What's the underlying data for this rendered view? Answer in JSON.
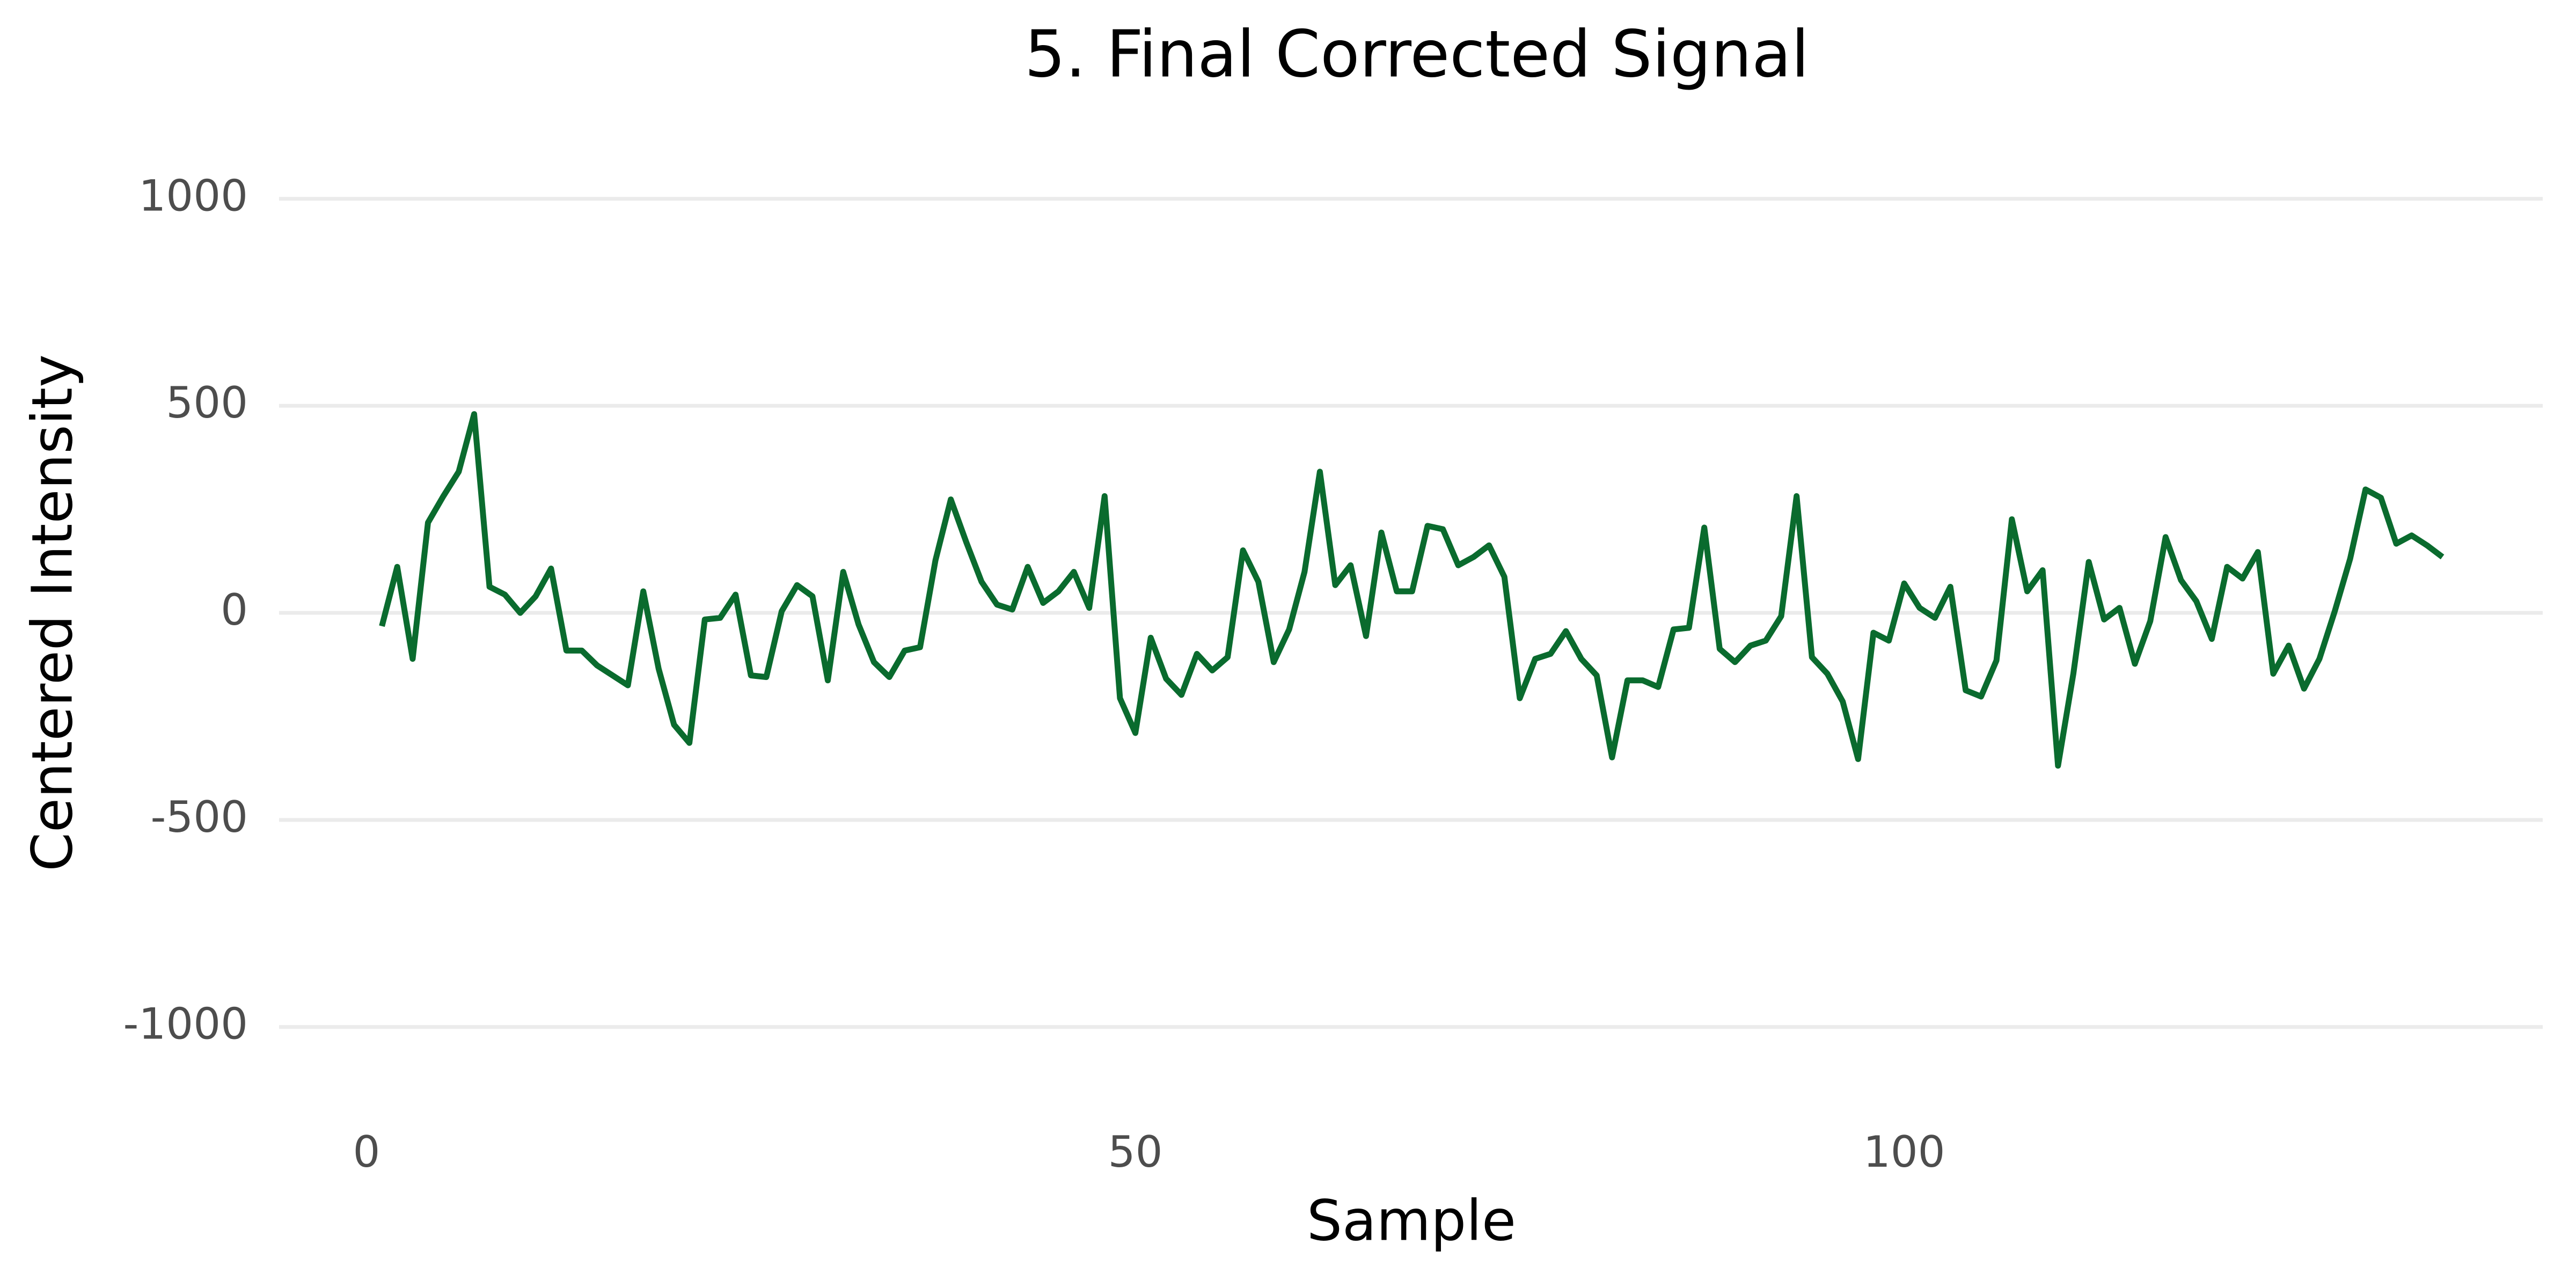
{
  "chart_data": {
    "type": "line",
    "title": "5. Final Corrected Signal",
    "x_label": "Sample",
    "y_label": "Centered Intensity",
    "x": [
      1,
      2,
      3,
      4,
      5,
      6,
      7,
      8,
      9,
      10,
      11,
      12,
      13,
      14,
      15,
      16,
      17,
      18,
      19,
      20,
      21,
      22,
      23,
      24,
      25,
      26,
      27,
      28,
      29,
      30,
      31,
      32,
      33,
      34,
      35,
      36,
      37,
      38,
      39,
      40,
      41,
      42,
      43,
      44,
      45,
      46,
      47,
      48,
      49,
      50,
      51,
      52,
      53,
      54,
      55,
      56,
      57,
      58,
      59,
      60,
      61,
      62,
      63,
      64,
      65,
      66,
      67,
      68,
      69,
      70,
      71,
      72,
      73,
      74,
      75,
      76,
      77,
      78,
      79,
      80,
      81,
      82,
      83,
      84,
      85,
      86,
      87,
      88,
      89,
      90,
      91,
      92,
      93,
      94,
      95,
      96,
      97,
      98,
      99,
      100,
      101,
      102,
      103,
      104,
      105,
      106,
      107,
      108,
      109,
      110,
      111,
      112,
      113,
      114,
      115,
      116,
      117,
      118,
      119,
      120,
      121,
      122,
      123,
      124,
      125,
      126,
      127,
      128,
      129,
      130,
      131,
      132,
      133,
      134,
      135
    ],
    "series": [
      {
        "name": "Final Corrected Signal",
        "color": "#0a6b2e",
        "values": [
          -32,
          111,
          -111,
          218,
          282,
          341,
          480,
          63,
          44,
          0,
          40,
          107,
          -91,
          -91,
          -127,
          -151,
          -175,
          52,
          -135,
          -270,
          -314,
          -16,
          -12,
          44,
          -151,
          -155,
          4,
          67,
          40,
          -163,
          99,
          -28,
          -119,
          -155,
          -91,
          -83,
          127,
          274,
          171,
          75,
          20,
          8,
          111,
          24,
          52,
          99,
          12,
          282,
          -206,
          -290,
          -60,
          -159,
          -198,
          -99,
          -139,
          -107,
          151,
          75,
          -119,
          -40,
          99,
          341,
          67,
          115,
          -56,
          194,
          52,
          52,
          210,
          202,
          115,
          135,
          163,
          87,
          -206,
          -111,
          -99,
          -44,
          -111,
          -151,
          -349,
          -163,
          -163,
          -179,
          -40,
          -36,
          206,
          -87,
          -119,
          -79,
          -67,
          -8,
          282,
          -107,
          -147,
          -214,
          -353,
          -48,
          -67,
          71,
          12,
          -12,
          63,
          -187,
          -202,
          -115,
          226,
          52,
          103,
          -369,
          -147,
          123,
          -16,
          12,
          -123,
          -20,
          183,
          79,
          28,
          -63,
          111,
          83,
          147,
          -147,
          -79,
          -183,
          -111,
          4,
          131,
          298,
          278,
          167,
          187,
          163,
          135
        ]
      }
    ],
    "xlim": [
      -6,
      141
    ],
    "ylim": [
      -1130,
      1130
    ],
    "xticks": [
      0,
      50,
      100
    ],
    "yticks": [
      -1000,
      -500,
      0,
      500,
      1000
    ],
    "grid": true
  }
}
